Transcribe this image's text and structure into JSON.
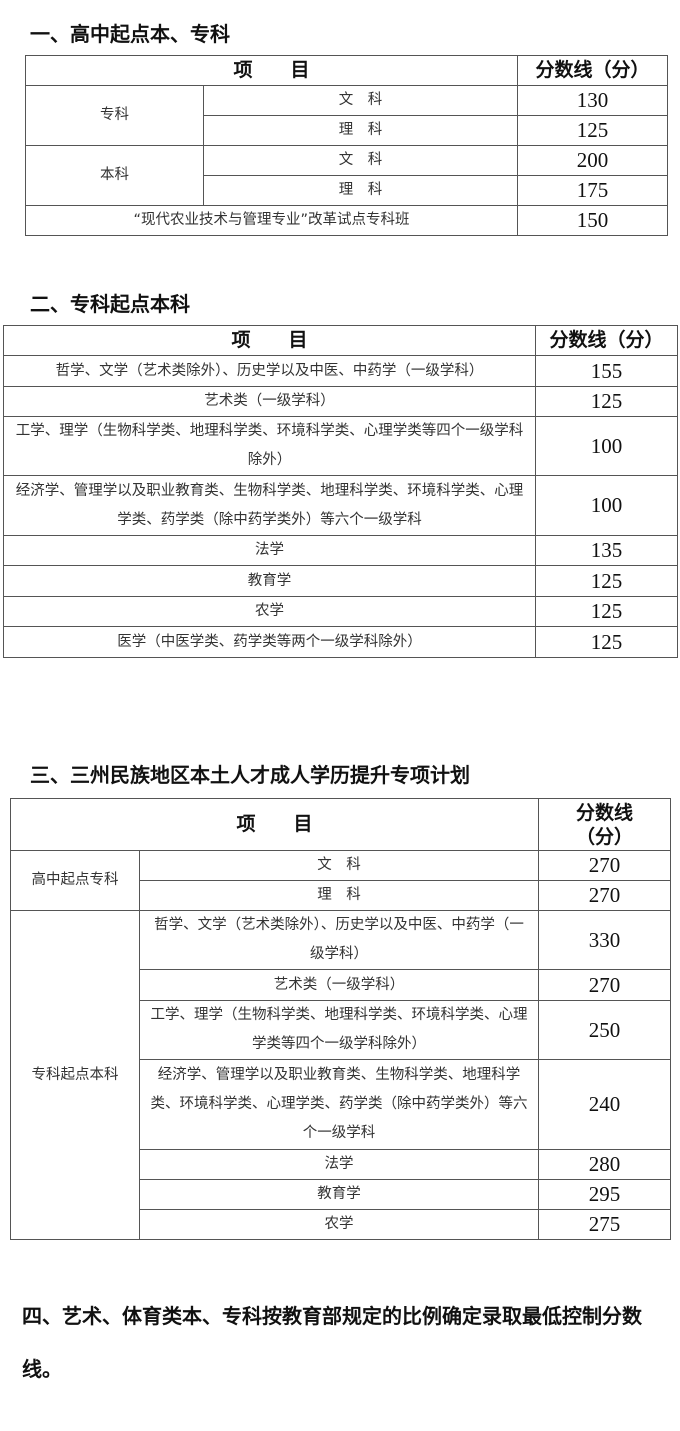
{
  "section1": {
    "title": "一、高中起点本、专科",
    "header": {
      "item": "项　　目",
      "score": "分数线（分）"
    },
    "groups": [
      {
        "label": "专科",
        "rows": [
          {
            "sub": "文　科",
            "score": "130"
          },
          {
            "sub": "理　科",
            "score": "125"
          }
        ]
      },
      {
        "label": "本科",
        "rows": [
          {
            "sub": "文　科",
            "score": "200"
          },
          {
            "sub": "理　科",
            "score": "175"
          }
        ]
      }
    ],
    "special": {
      "label": "“现代农业技术与管理专业”改革试点专科班",
      "score": "150"
    }
  },
  "section2": {
    "title": "二、专科起点本科",
    "header": {
      "item": "项　　目",
      "score": "分数线（分）"
    },
    "rows": [
      {
        "label": "哲学、文学（艺术类除外）、历史学以及中医、中药学（一级学科）",
        "score": "155"
      },
      {
        "label": "艺术类（一级学科）",
        "score": "125"
      },
      {
        "label": "工学、理学（生物科学类、地理科学类、环境科学类、心理学类等四个一级学科除外）",
        "score": "100"
      },
      {
        "label": "经济学、管理学以及职业教育类、生物科学类、地理科学类、环境科学类、心理学类、药学类（除中药学类外）等六个一级学科",
        "score": "100"
      },
      {
        "label": "法学",
        "score": "135"
      },
      {
        "label": "教育学",
        "score": "125"
      },
      {
        "label": "农学",
        "score": "125"
      },
      {
        "label": "医学（中医学类、药学类等两个一级学科除外）",
        "score": "125"
      }
    ]
  },
  "section3": {
    "title": "三、三州民族地区本土人才成人学历提升专项计划",
    "header": {
      "item": "项　　目",
      "score": "分数线（分）"
    },
    "groups": [
      {
        "label": "高中起点专科",
        "rows": [
          {
            "sub": "文　科",
            "score": "270"
          },
          {
            "sub": "理　科",
            "score": "270"
          }
        ]
      },
      {
        "label": "专科起点本科",
        "rows": [
          {
            "sub": "哲学、文学（艺术类除外）、历史学以及中医、中药学（一级学科）",
            "score": "330"
          },
          {
            "sub": "艺术类（一级学科）",
            "score": "270"
          },
          {
            "sub": "工学、理学（生物科学类、地理科学类、环境科学类、心理学类等四个一级学科除外）",
            "score": "250"
          },
          {
            "sub": "经济学、管理学以及职业教育类、生物科学类、地理科学类、环境科学类、心理学类、药学类（除中药学类外）等六个一级学科",
            "score": "240"
          },
          {
            "sub": "法学",
            "score": "280"
          },
          {
            "sub": "教育学",
            "score": "295"
          },
          {
            "sub": "农学",
            "score": "275"
          }
        ]
      }
    ]
  },
  "section4": {
    "text": "四、艺术、体育类本、专科按教育部规定的比例确定录取最低控制分数线。"
  }
}
